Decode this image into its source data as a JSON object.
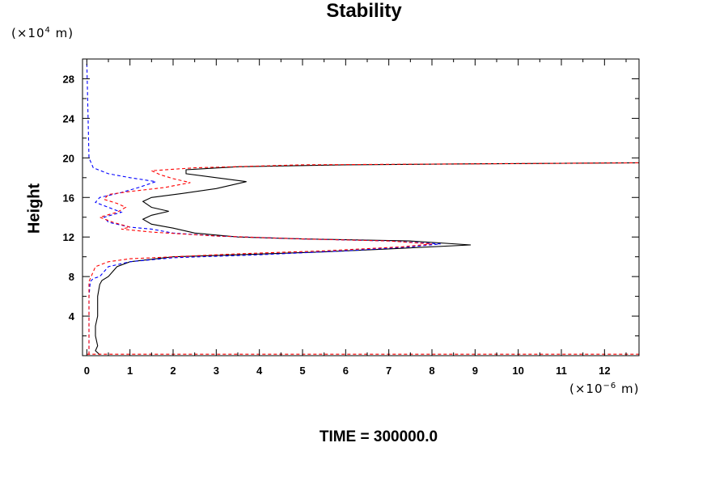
{
  "chart_data": {
    "type": "line",
    "title": "Stability",
    "ylabel": "Height",
    "y_unit": {
      "prefix": "(×10",
      "exponent": "4",
      "suffix": " m)"
    },
    "x_unit": {
      "prefix": "(×10",
      "exponent": "−6",
      "suffix": " m)"
    },
    "footer": "TIME = 300000.0",
    "xlim": [
      -0.1,
      12.8
    ],
    "ylim": [
      0,
      30
    ],
    "xticks": [
      "0",
      "1",
      "2",
      "3",
      "4",
      "5",
      "6",
      "7",
      "8",
      "9",
      "10",
      "11",
      "12"
    ],
    "yticks": [
      "4",
      "8",
      "12",
      "16",
      "20",
      "24",
      "28"
    ],
    "grid": false,
    "series": [
      {
        "color": "#000000",
        "dash": "solid",
        "points": [
          [
            0.3,
            0.1
          ],
          [
            0.2,
            0.5
          ],
          [
            0.25,
            1
          ],
          [
            0.2,
            2
          ],
          [
            0.2,
            3
          ],
          [
            0.25,
            4
          ],
          [
            0.25,
            5
          ],
          [
            0.25,
            6
          ],
          [
            0.3,
            7.2
          ],
          [
            0.35,
            7.6
          ],
          [
            0.5,
            8.0
          ],
          [
            0.6,
            8.5
          ],
          [
            0.7,
            9.0
          ],
          [
            1.0,
            9.5
          ],
          [
            2.0,
            10.0
          ],
          [
            3.5,
            10.2
          ],
          [
            5.5,
            10.5
          ],
          [
            7.0,
            10.8
          ],
          [
            8.9,
            11.2
          ],
          [
            7.5,
            11.6
          ],
          [
            5.0,
            11.8
          ],
          [
            3.5,
            12.0
          ],
          [
            2.5,
            12.4
          ],
          [
            2.0,
            12.9
          ],
          [
            1.5,
            13.3
          ],
          [
            1.3,
            13.8
          ],
          [
            1.5,
            14.2
          ],
          [
            1.9,
            14.6
          ],
          [
            1.5,
            15.0
          ],
          [
            1.3,
            15.6
          ],
          [
            1.5,
            16.0
          ],
          [
            2.2,
            16.4
          ],
          [
            3.0,
            16.9
          ],
          [
            3.7,
            17.6
          ],
          [
            3.0,
            18.0
          ],
          [
            2.3,
            18.4
          ],
          [
            2.3,
            18.8
          ],
          [
            3.5,
            19.1
          ],
          [
            6.0,
            19.3
          ],
          [
            9.0,
            19.4
          ],
          [
            12.8,
            19.5
          ]
        ]
      },
      {
        "color": "#0000ff",
        "dash": "dashed",
        "points": [
          [
            0.05,
            0.1
          ],
          [
            0.05,
            2
          ],
          [
            0.05,
            4
          ],
          [
            0.05,
            6
          ],
          [
            0.08,
            7.5
          ],
          [
            0.15,
            7.8
          ],
          [
            0.3,
            8.0
          ],
          [
            0.4,
            8.5
          ],
          [
            0.5,
            9.0
          ],
          [
            1.0,
            9.5
          ],
          [
            2.0,
            9.9
          ],
          [
            4.0,
            10.2
          ],
          [
            6.0,
            10.6
          ],
          [
            7.5,
            11.0
          ],
          [
            8.2,
            11.3
          ],
          [
            7.0,
            11.6
          ],
          [
            5.0,
            11.8
          ],
          [
            3.0,
            12.1
          ],
          [
            2.0,
            12.4
          ],
          [
            1.5,
            12.8
          ],
          [
            1.0,
            13.0
          ],
          [
            0.5,
            13.5
          ],
          [
            0.4,
            14.0
          ],
          [
            0.8,
            14.5
          ],
          [
            0.5,
            15.0
          ],
          [
            0.2,
            15.5
          ],
          [
            0.3,
            16.0
          ],
          [
            0.8,
            16.5
          ],
          [
            1.2,
            17.0
          ],
          [
            1.6,
            17.6
          ],
          [
            1.0,
            18.0
          ],
          [
            0.5,
            18.4
          ],
          [
            0.15,
            19.0
          ],
          [
            0.05,
            20.0
          ],
          [
            0.03,
            24.0
          ],
          [
            0.0,
            29.8
          ]
        ]
      },
      {
        "color": "#ff0000",
        "dash": "dashed",
        "points": [
          [
            0.05,
            0.1
          ],
          [
            0.05,
            2
          ],
          [
            0.05,
            5
          ],
          [
            0.05,
            7.5
          ],
          [
            0.1,
            8.0
          ],
          [
            0.2,
            9.0
          ],
          [
            0.5,
            9.5
          ],
          [
            1.0,
            9.8
          ],
          [
            2.0,
            10.0
          ],
          [
            3.5,
            10.3
          ],
          [
            5.5,
            10.6
          ],
          [
            7.3,
            11.0
          ],
          [
            8.0,
            11.3
          ],
          [
            7.0,
            11.6
          ],
          [
            5.0,
            11.8
          ],
          [
            3.0,
            12.1
          ],
          [
            1.5,
            12.5
          ],
          [
            0.8,
            12.8
          ],
          [
            1.0,
            13.0
          ],
          [
            0.6,
            13.5
          ],
          [
            0.3,
            14.0
          ],
          [
            0.7,
            14.5
          ],
          [
            0.9,
            15.0
          ],
          [
            0.7,
            15.4
          ],
          [
            0.4,
            15.8
          ],
          [
            0.5,
            16.3
          ],
          [
            1.0,
            16.6
          ],
          [
            1.8,
            17.0
          ],
          [
            2.4,
            17.5
          ],
          [
            2.0,
            17.9
          ],
          [
            1.7,
            18.3
          ],
          [
            1.5,
            18.7
          ],
          [
            2.5,
            19.0
          ],
          [
            5.0,
            19.3
          ],
          [
            9.0,
            19.4
          ],
          [
            12.8,
            19.5
          ]
        ]
      },
      {
        "color": "#ff0000",
        "dash": "dashed",
        "points": [
          [
            0.0,
            0.15
          ],
          [
            12.8,
            0.15
          ]
        ]
      }
    ]
  }
}
